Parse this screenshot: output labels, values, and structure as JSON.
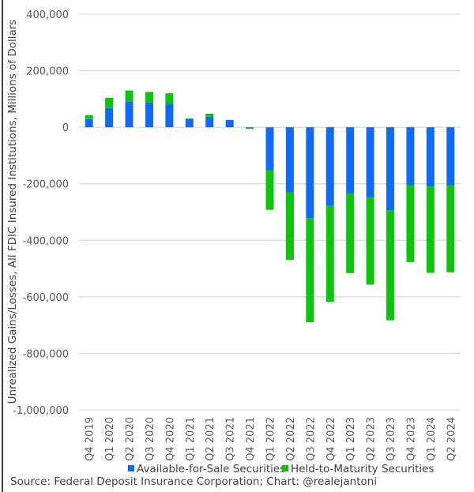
{
  "chart_data": {
    "type": "bar",
    "stacked": true,
    "title": "",
    "xlabel": "",
    "ylabel": "Unrealized Gains/Losses, All FDIC Insured Institutions, Millions of Dollars",
    "ylim": [
      -1000000,
      400000
    ],
    "yticks": [
      400000,
      200000,
      0,
      -200000,
      -400000,
      -600000,
      -800000,
      -1000000
    ],
    "ytick_labels": [
      "400,000",
      "200,000",
      "0",
      "-200,000",
      "-400,000",
      "-600,000",
      "-800,000",
      "-1,000,000"
    ],
    "grid": true,
    "legend_position": "bottom",
    "categories": [
      "Q4 2019",
      "Q1 2020",
      "Q2 2020",
      "Q3 2020",
      "Q4 2020",
      "Q1 2021",
      "Q2 2021",
      "Q3 2021",
      "Q4 2021",
      "Q1 2022",
      "Q2 2022",
      "Q3 2022",
      "Q4 2022",
      "Q1 2023",
      "Q2 2023",
      "Q3 2023",
      "Q4 2023",
      "Q1 2024",
      "Q2 2024"
    ],
    "series": [
      {
        "name": "Available-for-Sale Securities",
        "color": "#0F6AF5",
        "values": [
          29000,
          68000,
          91000,
          88000,
          83000,
          29000,
          37000,
          26000,
          -1000,
          -153000,
          -230000,
          -323000,
          -278000,
          -234000,
          -248000,
          -294000,
          -205000,
          -210000,
          -205000
        ]
      },
      {
        "name": "Held-to-Maturity Securities",
        "color": "#0DC40D",
        "values": [
          14000,
          36000,
          39000,
          37000,
          37000,
          2000,
          11000,
          0,
          -5000,
          -139000,
          -239000,
          -367000,
          -340000,
          -282000,
          -309000,
          -389000,
          -272000,
          -305000,
          -308000
        ]
      }
    ],
    "source": "Source: Federal Deposit Insurance Corporation; Chart: @realejantoni"
  }
}
